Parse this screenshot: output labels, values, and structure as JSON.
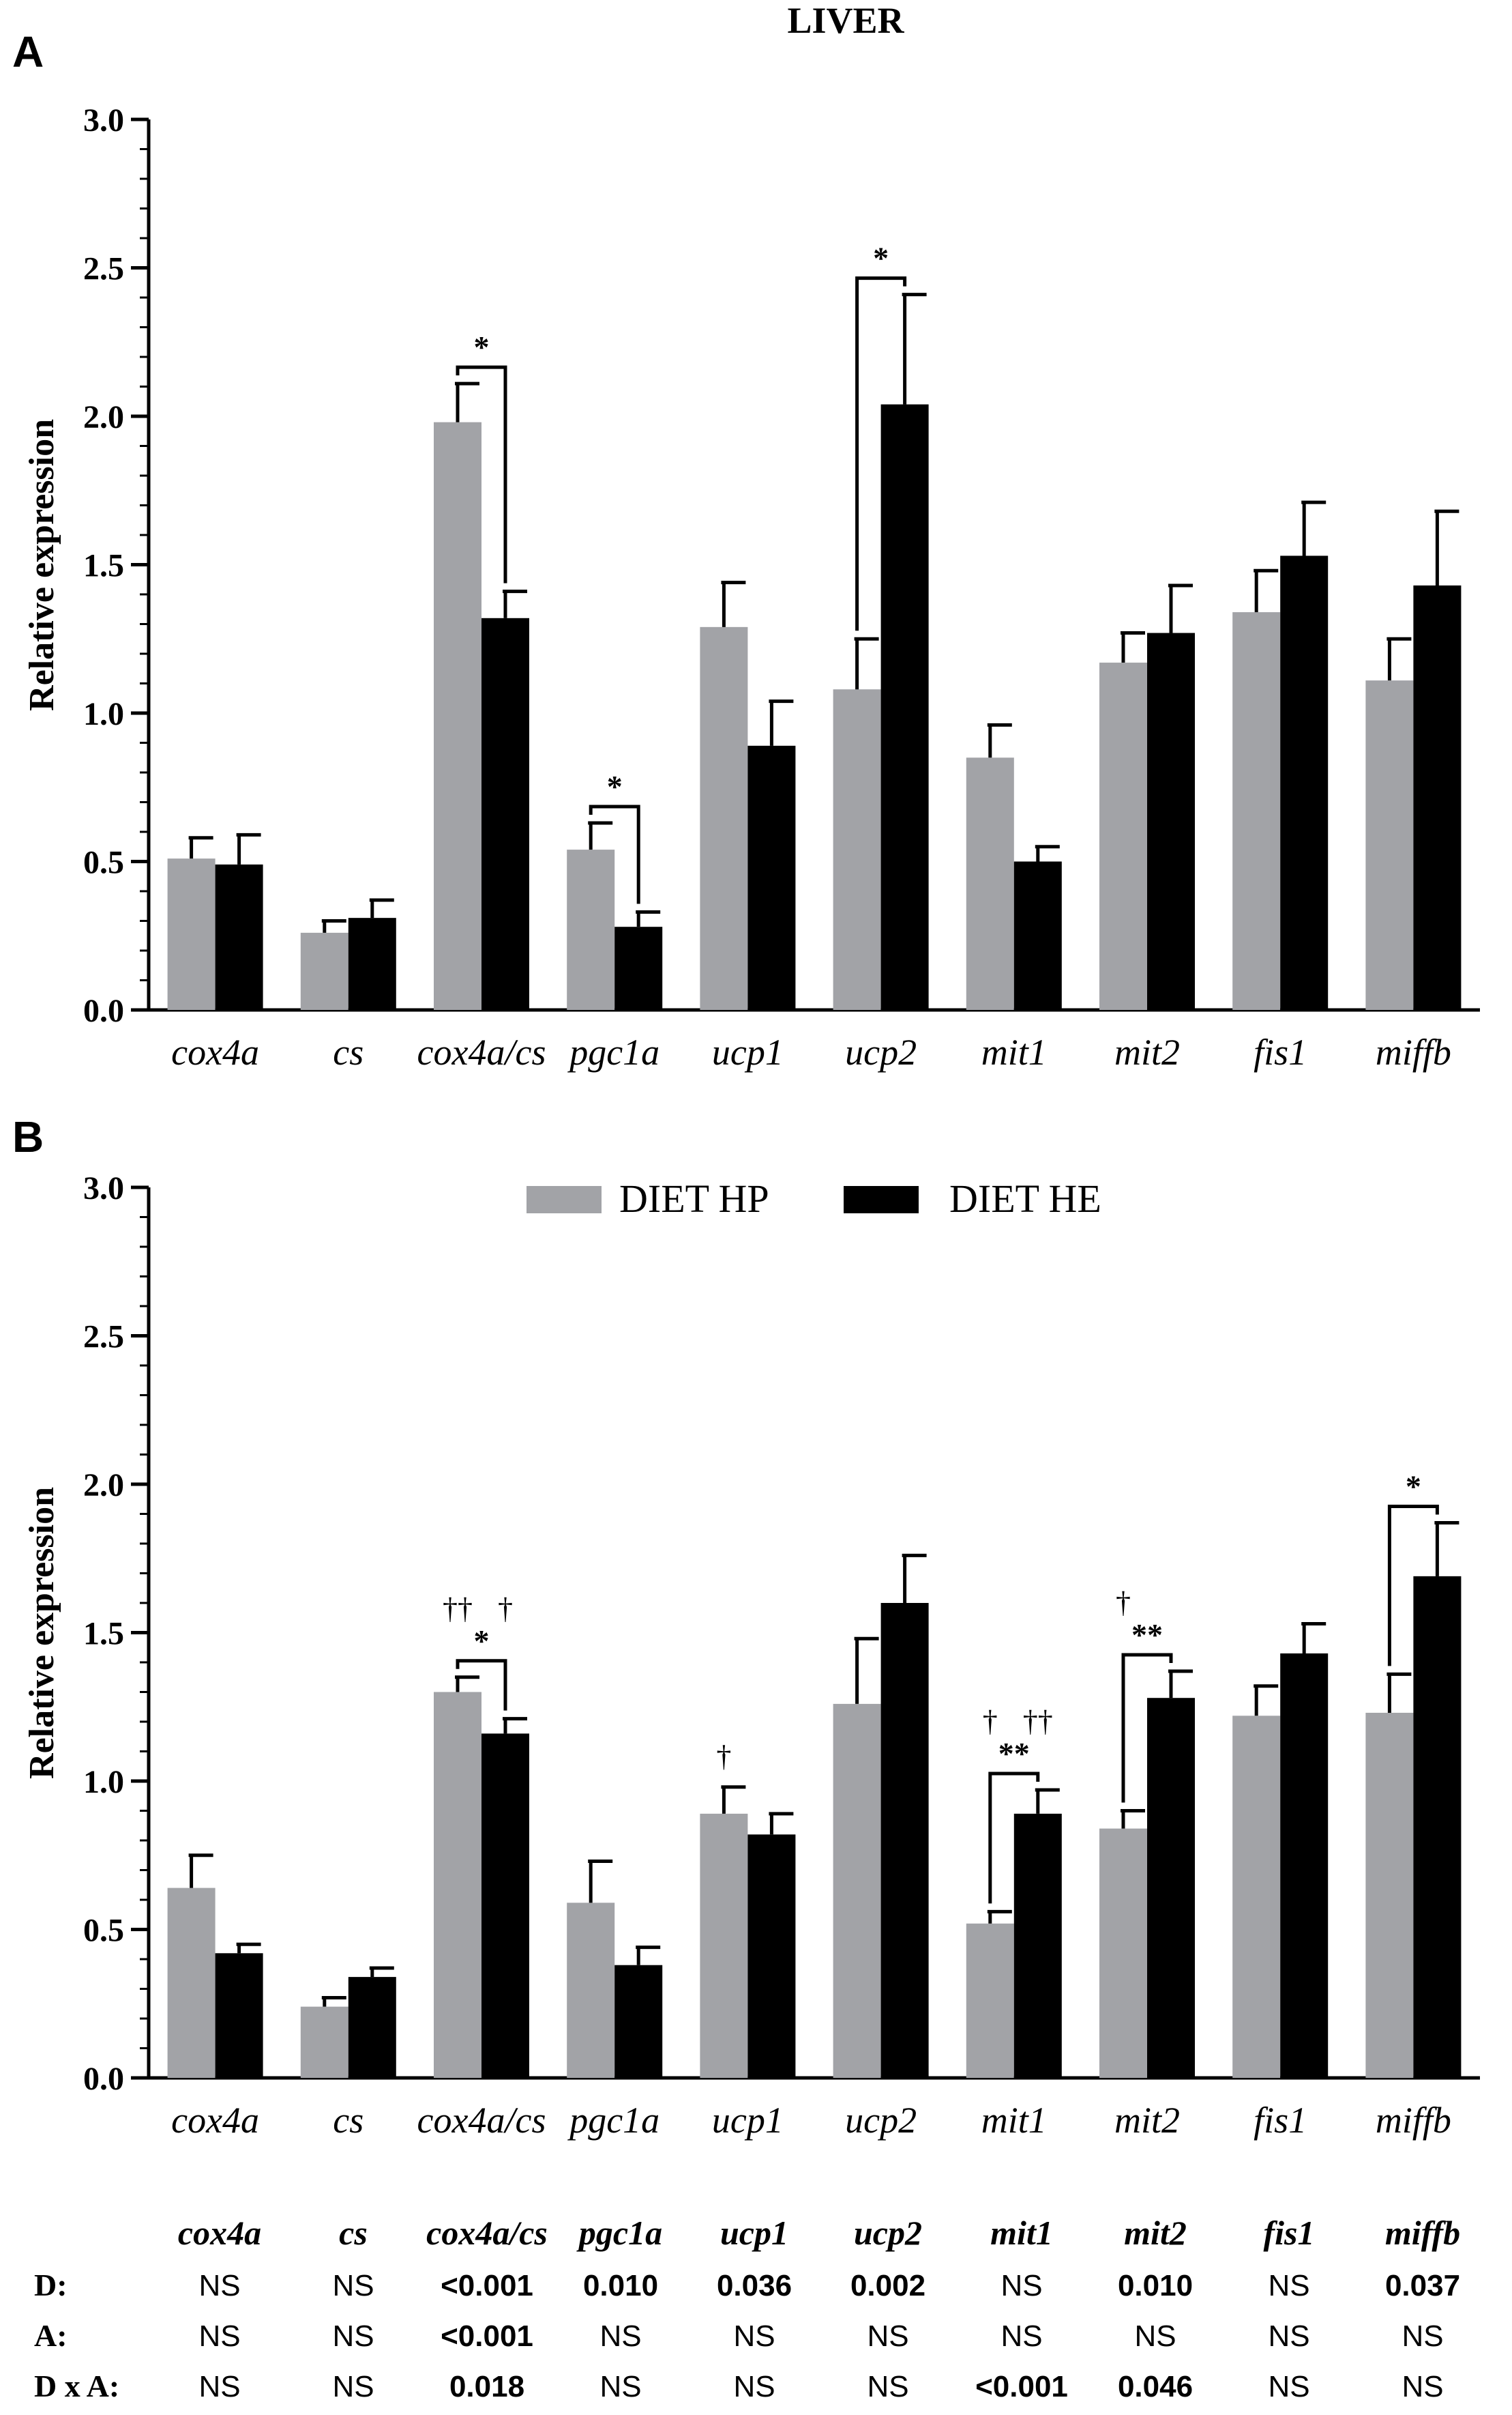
{
  "figure_title": "LIVER",
  "legend": {
    "hp_label": "DIET HP",
    "he_label": "DIET HE"
  },
  "colors": {
    "hp": "#a2a3a7",
    "he": "#000000",
    "axis": "#000000"
  },
  "chart_data": [
    {
      "panel": "A",
      "type": "bar",
      "title": "LIVER",
      "ylabel": "Relative expression",
      "xlabel": "",
      "ylim": [
        0,
        3.0
      ],
      "yticks": [
        "0.0",
        "0.5",
        "1.0",
        "1.5",
        "2.0",
        "2.5",
        "3.0"
      ],
      "categories": [
        "cox4a",
        "cs",
        "cox4a/cs",
        "pgc1a",
        "ucp1",
        "ucp2",
        "mit1",
        "mit2",
        "fis1",
        "miffb"
      ],
      "series": [
        {
          "name": "DIET HP",
          "values": [
            0.51,
            0.26,
            1.98,
            0.54,
            1.29,
            1.08,
            0.85,
            1.17,
            1.34,
            1.11
          ],
          "errors": [
            0.07,
            0.04,
            0.13,
            0.09,
            0.15,
            0.17,
            0.11,
            0.1,
            0.14,
            0.14
          ]
        },
        {
          "name": "DIET HE",
          "values": [
            0.49,
            0.31,
            1.32,
            0.28,
            0.89,
            2.04,
            0.5,
            1.27,
            1.53,
            1.43
          ],
          "errors": [
            0.1,
            0.06,
            0.09,
            0.05,
            0.15,
            0.37,
            0.05,
            0.16,
            0.18,
            0.25
          ]
        }
      ],
      "significance": [
        {
          "category": "cox4a/cs",
          "label": "*"
        },
        {
          "category": "pgc1a",
          "label": "*"
        },
        {
          "category": "ucp2",
          "label": "*"
        }
      ],
      "daggers": []
    },
    {
      "panel": "B",
      "type": "bar",
      "title": "",
      "ylabel": "Relative expression",
      "xlabel": "",
      "ylim": [
        0,
        3.0
      ],
      "yticks": [
        "0.0",
        "0.5",
        "1.0",
        "1.5",
        "2.0",
        "2.5",
        "3.0"
      ],
      "categories": [
        "cox4a",
        "cs",
        "cox4a/cs",
        "pgc1a",
        "ucp1",
        "ucp2",
        "mit1",
        "mit2",
        "fis1",
        "miffb"
      ],
      "series": [
        {
          "name": "DIET HP",
          "values": [
            0.64,
            0.24,
            1.3,
            0.59,
            0.89,
            1.26,
            0.52,
            0.84,
            1.22,
            1.23
          ],
          "errors": [
            0.11,
            0.03,
            0.05,
            0.14,
            0.09,
            0.22,
            0.04,
            0.06,
            0.1,
            0.13
          ]
        },
        {
          "name": "DIET HE",
          "values": [
            0.42,
            0.34,
            1.16,
            0.38,
            0.82,
            1.6,
            0.89,
            1.28,
            1.43,
            1.69
          ],
          "errors": [
            0.03,
            0.03,
            0.05,
            0.06,
            0.07,
            0.16,
            0.08,
            0.09,
            0.1,
            0.18
          ]
        }
      ],
      "significance": [
        {
          "category": "cox4a/cs",
          "label": "*"
        },
        {
          "category": "mit1",
          "label": "**"
        },
        {
          "category": "mit2",
          "label": "**"
        },
        {
          "category": "miffb",
          "label": "*"
        }
      ],
      "daggers": [
        {
          "category": "cox4a/cs",
          "series": 0,
          "label": "††"
        },
        {
          "category": "cox4a/cs",
          "series": 1,
          "label": "†"
        },
        {
          "category": "ucp1",
          "series": 0,
          "label": "†"
        },
        {
          "category": "mit1",
          "series": 0,
          "label": "†"
        },
        {
          "category": "mit1",
          "series": 1,
          "label": "††"
        },
        {
          "category": "mit2",
          "series": 0,
          "label": "†"
        }
      ]
    }
  ],
  "stats_table": {
    "headers": [
      "cox4a",
      "cs",
      "cox4a/cs",
      "pgc1a",
      "ucp1",
      "ucp2",
      "mit1",
      "mit2",
      "fis1",
      "miffb"
    ],
    "rows": [
      {
        "label": "D:",
        "values": [
          "NS",
          "NS",
          "<0.001",
          "0.010",
          "0.036",
          "0.002",
          "NS",
          "0.010",
          "NS",
          "0.037"
        ]
      },
      {
        "label": "A:",
        "values": [
          "NS",
          "NS",
          "<0.001",
          "NS",
          "NS",
          "NS",
          "NS",
          "NS",
          "NS",
          "NS"
        ]
      },
      {
        "label": "D x A:",
        "values": [
          "NS",
          "NS",
          "0.018",
          "NS",
          "NS",
          "NS",
          "<0.001",
          "0.046",
          "NS",
          "NS"
        ]
      }
    ]
  }
}
